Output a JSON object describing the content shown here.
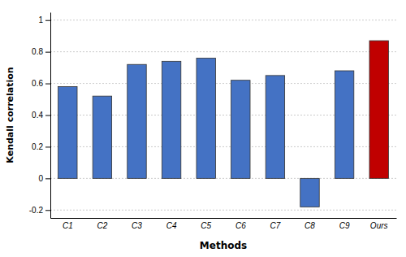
{
  "chart_data": {
    "type": "bar",
    "categories": [
      "C1",
      "C2",
      "C3",
      "C4",
      "C5",
      "C6",
      "C7",
      "C8",
      "C9",
      "Ours"
    ],
    "values": [
      0.58,
      0.52,
      0.72,
      0.74,
      0.76,
      0.62,
      0.65,
      -0.18,
      0.68,
      0.87
    ],
    "colors": [
      "#4472C4",
      "#4472C4",
      "#4472C4",
      "#4472C4",
      "#4472C4",
      "#4472C4",
      "#4472C4",
      "#4472C4",
      "#4472C4",
      "#C00000"
    ],
    "xlabel": "Methods",
    "ylabel": "Kendall correlation",
    "ylim": [
      -0.25,
      1.05
    ],
    "yticks": [
      -0.2,
      0,
      0.2,
      0.4,
      0.6,
      0.8,
      1
    ],
    "grid": true
  }
}
